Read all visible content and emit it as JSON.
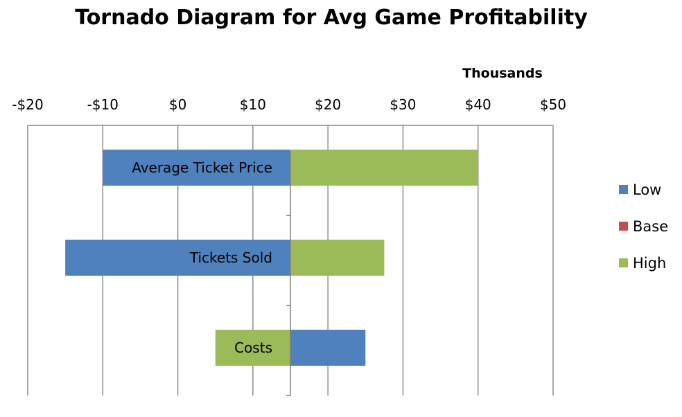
{
  "chart_data": {
    "type": "bar",
    "orientation": "horizontal",
    "stacked": true,
    "title": "Tornado Diagram for Avg Game Profitability",
    "axis_units_label": "Thousands",
    "x_tick_labels": [
      "-$20",
      "-$10",
      "$0",
      "$10",
      "$20",
      "$30",
      "$40",
      "$50"
    ],
    "x_ticks": [
      -20,
      -10,
      0,
      10,
      20,
      30,
      40,
      50
    ],
    "xlim": [
      -20,
      50
    ],
    "x_axis_position": "top",
    "grid": "vertical",
    "base": 15,
    "categories": [
      "Average Ticket Price",
      "Tickets Sold",
      "Costs"
    ],
    "series": [
      {
        "name": "Low",
        "color": "#4f81bd",
        "values": [
          -10,
          -15,
          25
        ]
      },
      {
        "name": "Base",
        "color": "#c0504d",
        "values": [
          15,
          15,
          15
        ]
      },
      {
        "name": "High",
        "color": "#9bbb59",
        "values": [
          40,
          27.5,
          5
        ]
      }
    ],
    "legend_position": "right"
  }
}
